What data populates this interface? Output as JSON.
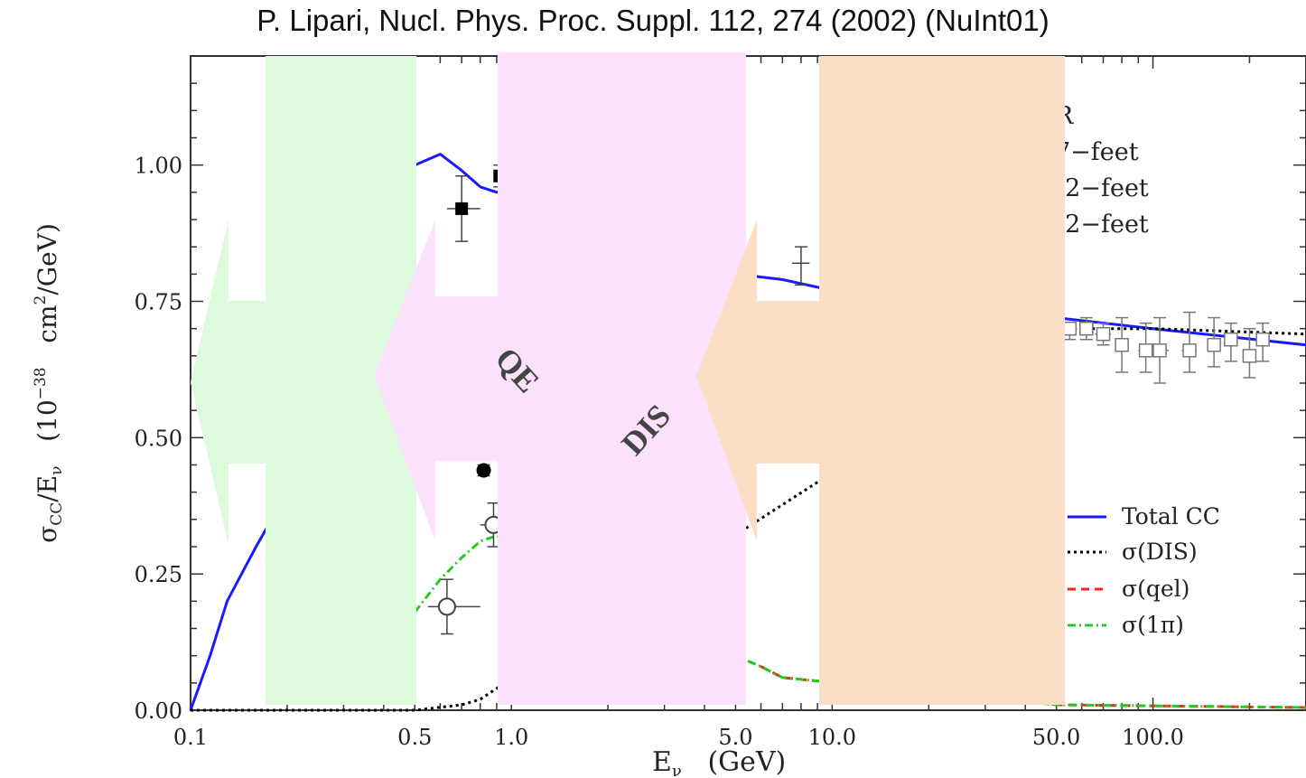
{
  "title": "P. Lipari, Nucl. Phys. Proc. Suppl. 112, 274 (2002) (NuInt01)",
  "chart_data": {
    "type": "scatter",
    "xscale": "log",
    "xlim": [
      0.1,
      300
    ],
    "ylim": [
      0,
      1.2
    ],
    "grid": false,
    "xlabel": "Eν   (GeV)",
    "ylabel": "σCC/Eν   (10⁻³⁸  cm²/GeV)",
    "xticks": [
      0.1,
      0.5,
      1.0,
      5.0,
      10.0,
      50.0,
      100.0
    ],
    "xtick_labels": [
      "0.1",
      "0.5",
      "1.0",
      "5.0",
      "10.0",
      "50.0",
      "100.0"
    ],
    "yticks": [
      0.0,
      0.25,
      0.5,
      0.75,
      1.0
    ],
    "ytick_labels": [
      "0.00",
      "0.25",
      "0.50",
      "0.75",
      "1.00"
    ],
    "series": [
      {
        "name": "Total CC",
        "style": "solid",
        "color": "#1a1aff",
        "x": [
          0.1,
          0.115,
          0.13,
          0.16,
          0.2,
          0.25,
          0.3,
          0.4,
          0.5,
          0.6,
          0.7,
          0.8,
          0.9,
          1.0,
          5.0,
          7.0,
          10.0,
          50.0,
          100.0,
          300.0
        ],
        "y": [
          0.0,
          0.1,
          0.2,
          0.3,
          0.4,
          0.5,
          0.6,
          0.8,
          1.0,
          1.02,
          0.99,
          0.96,
          0.95,
          0.95,
          0.8,
          0.79,
          0.77,
          0.72,
          0.7,
          0.67
        ]
      },
      {
        "name": "σ(DIS)",
        "style": "dotted",
        "color": "#000000",
        "x": [
          0.1,
          0.5,
          0.7,
          0.8,
          0.9,
          50.0,
          100.0,
          300.0
        ],
        "y": [
          0.0,
          0.0,
          0.01,
          0.02,
          0.04,
          0.7,
          0.7,
          0.69
        ]
      },
      {
        "name": "σ(qel)",
        "style": "dashed",
        "color": "#ff2020",
        "x": [
          5.0,
          6.0,
          7.0,
          50.0,
          300.0
        ],
        "y": [
          0.1,
          0.08,
          0.06,
          0.01,
          0.005
        ]
      },
      {
        "name": "σ(1π)",
        "style": "dashdot",
        "color": "#22cc22",
        "x": [
          0.5,
          0.6,
          0.7,
          0.8,
          0.9,
          5.0,
          6.0,
          7.0,
          50.0,
          300.0
        ],
        "y": [
          0.18,
          0.24,
          0.28,
          0.31,
          0.32,
          0.1,
          0.08,
          0.06,
          0.01,
          0.005
        ]
      }
    ],
    "points": [
      {
        "x": 0.7,
        "y": 0.92,
        "ex": [
          0.63,
          0.8
        ],
        "ey": [
          0.86,
          0.98
        ],
        "marker": "filled-square"
      },
      {
        "x": 0.92,
        "y": 0.98,
        "ex": [
          0.88,
          0.96
        ],
        "ey": [
          0.96,
          1.0
        ],
        "marker": "filled-square"
      },
      {
        "x": 0.82,
        "y": 0.44,
        "ex": [
          0.8,
          0.84
        ],
        "ey": [
          0.43,
          0.45
        ],
        "marker": "filled-circle"
      },
      {
        "x": 0.88,
        "y": 0.34,
        "ex": [
          0.8,
          0.95
        ],
        "ey": [
          0.3,
          0.38
        ],
        "marker": "open-circle"
      },
      {
        "x": 0.63,
        "y": 0.19,
        "ex": [
          0.55,
          0.8
        ],
        "ey": [
          0.14,
          0.24
        ],
        "marker": "open-circle"
      },
      {
        "x": 8.0,
        "y": 0.82,
        "ex": [
          7.5,
          8.5
        ],
        "ey": [
          0.78,
          0.85
        ],
        "marker": "none"
      },
      {
        "x": 55.0,
        "y": 0.7,
        "ex": [
          52.0,
          58.0
        ],
        "ey": [
          0.68,
          0.71
        ],
        "marker": "open-square"
      },
      {
        "x": 62.0,
        "y": 0.7,
        "ex": [
          59.0,
          65.0
        ],
        "ey": [
          0.68,
          0.72
        ],
        "marker": "open-square"
      },
      {
        "x": 70.0,
        "y": 0.69,
        "ex": [
          66.0,
          74.0
        ],
        "ey": [
          0.67,
          0.71
        ],
        "marker": "open-square"
      },
      {
        "x": 80.0,
        "y": 0.67,
        "ex": [
          76.0,
          84.0
        ],
        "ey": [
          0.62,
          0.72
        ],
        "marker": "open-square"
      },
      {
        "x": 95.0,
        "y": 0.66,
        "ex": [
          90.0,
          100.0
        ],
        "ey": [
          0.62,
          0.71
        ],
        "marker": "open-square"
      },
      {
        "x": 105.0,
        "y": 0.66,
        "ex": [
          100.0,
          112.0
        ],
        "ey": [
          0.6,
          0.72
        ],
        "marker": "open-square"
      },
      {
        "x": 130.0,
        "y": 0.66,
        "ex": [
          123.0,
          137.0
        ],
        "ey": [
          0.62,
          0.73
        ],
        "marker": "open-square"
      },
      {
        "x": 155.0,
        "y": 0.67,
        "ex": [
          148.0,
          162.0
        ],
        "ey": [
          0.63,
          0.72
        ],
        "marker": "open-square"
      },
      {
        "x": 175.0,
        "y": 0.68,
        "ex": [
          167.0,
          183.0
        ],
        "ey": [
          0.64,
          0.71
        ],
        "marker": "open-square"
      },
      {
        "x": 200.0,
        "y": 0.65,
        "ex": [
          190.0,
          210.0
        ],
        "ey": [
          0.61,
          0.7
        ],
        "marker": "open-square"
      },
      {
        "x": 220.0,
        "y": 0.68,
        "ex": [
          210.0,
          230.0
        ],
        "ey": [
          0.64,
          0.71
        ],
        "marker": "open-square"
      }
    ],
    "legend_top": [
      "R",
      "7−feet",
      "12−feet",
      "12−feet"
    ],
    "legend_lines": [
      "Total CC",
      "σ(DIS)",
      "σ(qel)",
      "σ(1π)"
    ],
    "annotations": [
      "QE",
      "DIS"
    ],
    "overlay_colors": {
      "green": "#ddfadd",
      "pink": "#fbe1fb",
      "peach": "#fadfc6"
    }
  }
}
